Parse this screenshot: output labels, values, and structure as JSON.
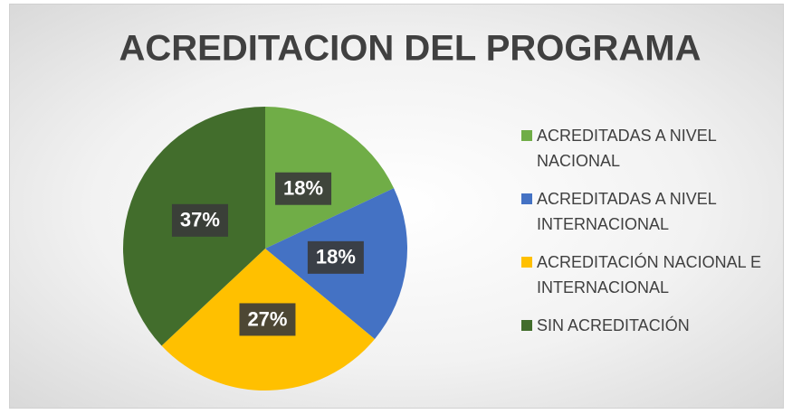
{
  "chart_data": {
    "type": "pie",
    "title": "ACREDITACION DEL PROGRAMA",
    "categories": [
      "ACREDITADAS A NIVEL NACIONAL",
      "ACREDITADAS A NIVEL INTERNACIONAL",
      "ACREDITACIÓN NACIONAL E INTERNACIONAL",
      "SIN ACREDITACIÓN"
    ],
    "values": [
      18,
      18,
      27,
      37
    ],
    "value_labels": [
      "18%",
      "18%",
      "27%",
      "37%"
    ],
    "colors": [
      "#70ad47",
      "#4472c4",
      "#ffc000",
      "#426d2c"
    ],
    "legend": "right"
  }
}
